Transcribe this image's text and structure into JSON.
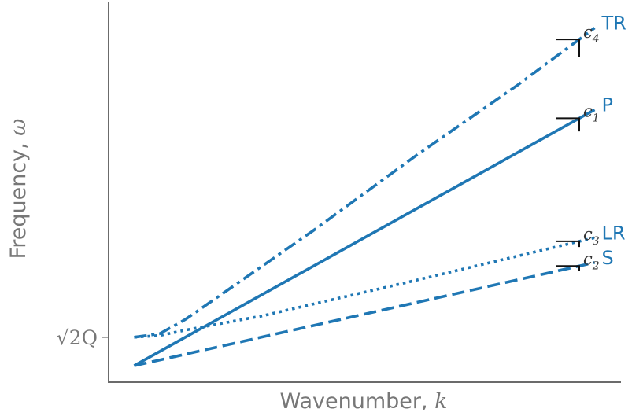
{
  "chart_data": {
    "type": "line",
    "xlabel": "Wavenumber, ",
    "xlabel_var": "k",
    "ylabel": "Frequency, ",
    "ylabel_var": "ω",
    "xlim": [
      0,
      1
    ],
    "ylim": [
      0,
      1
    ],
    "yticks": [
      {
        "value": 0.08,
        "label": "√2Q"
      }
    ],
    "grid": false,
    "accent_color": "#1f77b4",
    "series": [
      {
        "name": "TR",
        "style": "dashdot",
        "color": "#1f77b4",
        "x": [
          0.05,
          0.1,
          0.15,
          0.25,
          0.4,
          0.6,
          0.8,
          0.95
        ],
        "y": [
          0.08,
          0.09,
          0.13,
          0.23,
          0.38,
          0.59,
          0.79,
          0.95
        ],
        "slope_label": "c",
        "slope_sub": "4"
      },
      {
        "name": "P",
        "style": "solid",
        "color": "#1f77b4",
        "x": [
          0.05,
          0.95
        ],
        "y": [
          0.0,
          0.72
        ],
        "slope_label": "c",
        "slope_sub": "1"
      },
      {
        "name": "LR",
        "style": "dotted",
        "color": "#1f77b4",
        "x": [
          0.05,
          0.1,
          0.15,
          0.3,
          0.6,
          0.95
        ],
        "y": [
          0.08,
          0.085,
          0.1,
          0.14,
          0.24,
          0.36
        ],
        "slope_label": "c",
        "slope_sub": "3"
      },
      {
        "name": "S",
        "style": "dashed",
        "color": "#1f77b4",
        "x": [
          0.05,
          0.95
        ],
        "y": [
          0.0,
          0.29
        ],
        "slope_label": "c",
        "slope_sub": "2"
      }
    ]
  }
}
